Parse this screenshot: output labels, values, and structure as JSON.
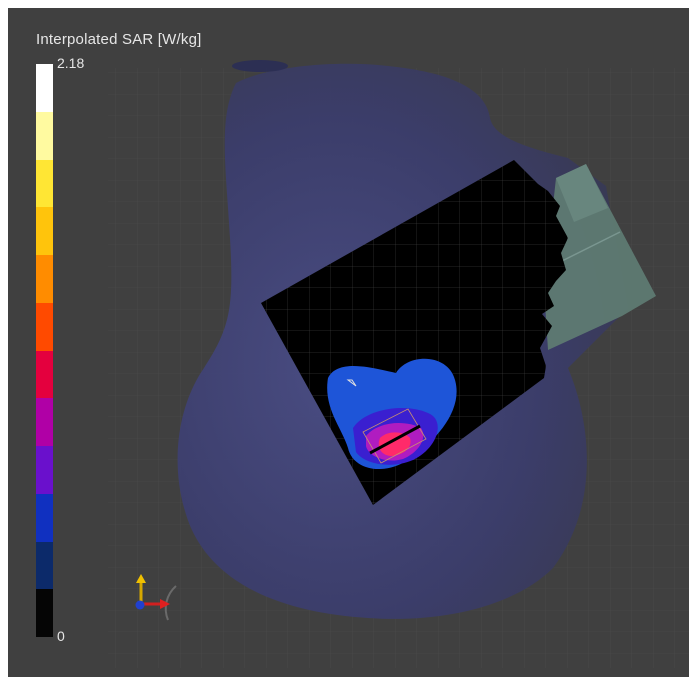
{
  "legend": {
    "title": "Interpolated SAR [W/kg]",
    "max_label": "2.18",
    "min_label": "0",
    "colors": [
      "#ffffff",
      "#fffaa0",
      "#ffe634",
      "#ffc40c",
      "#ff8c00",
      "#ff4a00",
      "#e4003e",
      "#b000a6",
      "#6a10cc",
      "#1030c0",
      "#0c2a6a",
      "#050505"
    ]
  },
  "viewport": {
    "icons": [
      "orientation-axes-icon"
    ],
    "colors": {
      "background": "#404040",
      "body": "#3d3f6e",
      "black_region": "#000000",
      "sar_low": "#1e55d8",
      "sar_mid": "#3a1fd0",
      "sar_high": "#b01cc0",
      "sar_peak": "#ff2a6a",
      "device": "#5e7a72"
    }
  }
}
